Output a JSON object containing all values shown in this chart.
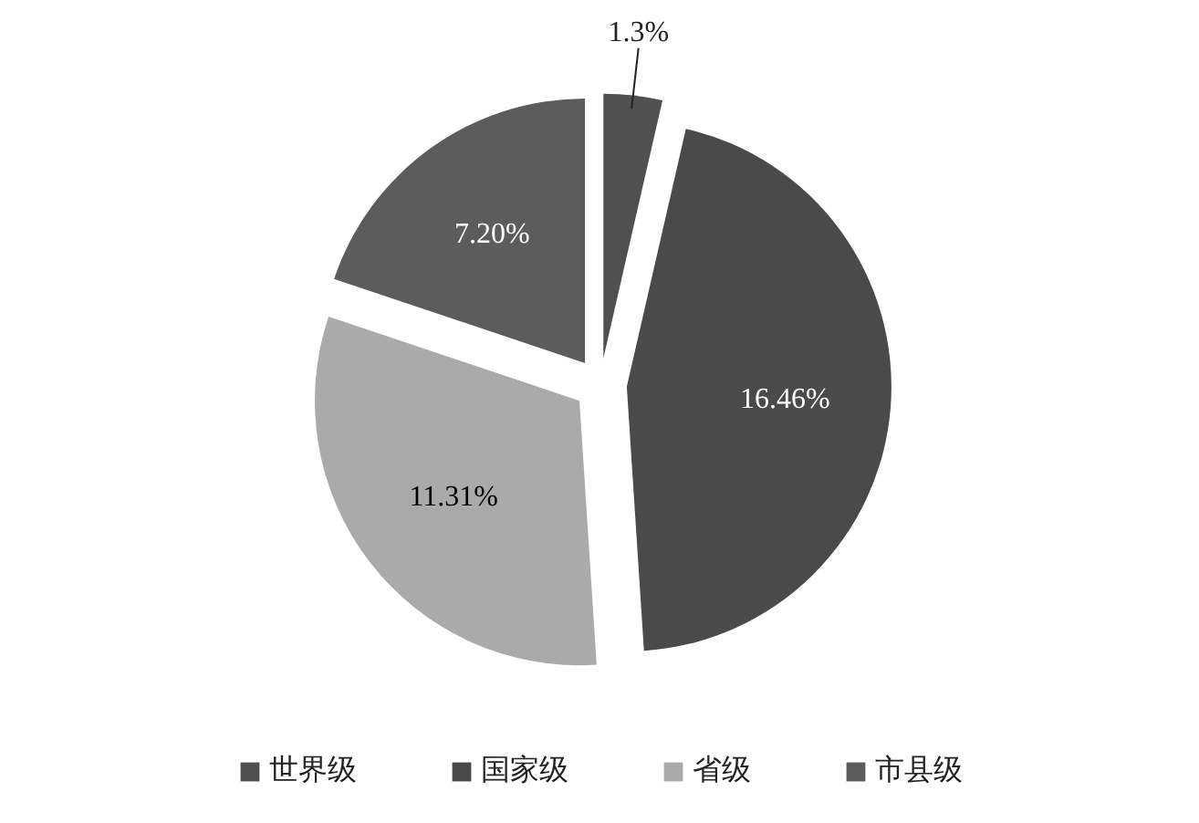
{
  "chart_data": {
    "type": "pie",
    "categories": [
      "世界级",
      "国家级",
      "省级",
      "市县级"
    ],
    "values": [
      1.3,
      16.46,
      11.31,
      7.2
    ],
    "colors": [
      "#505050",
      "#4a4a4a",
      "#aaaaaa",
      "#5c5c5c"
    ],
    "value_labels": [
      "1.3%",
      "16.46%",
      "11.31%",
      "7.20%"
    ],
    "legend": "bottom"
  }
}
